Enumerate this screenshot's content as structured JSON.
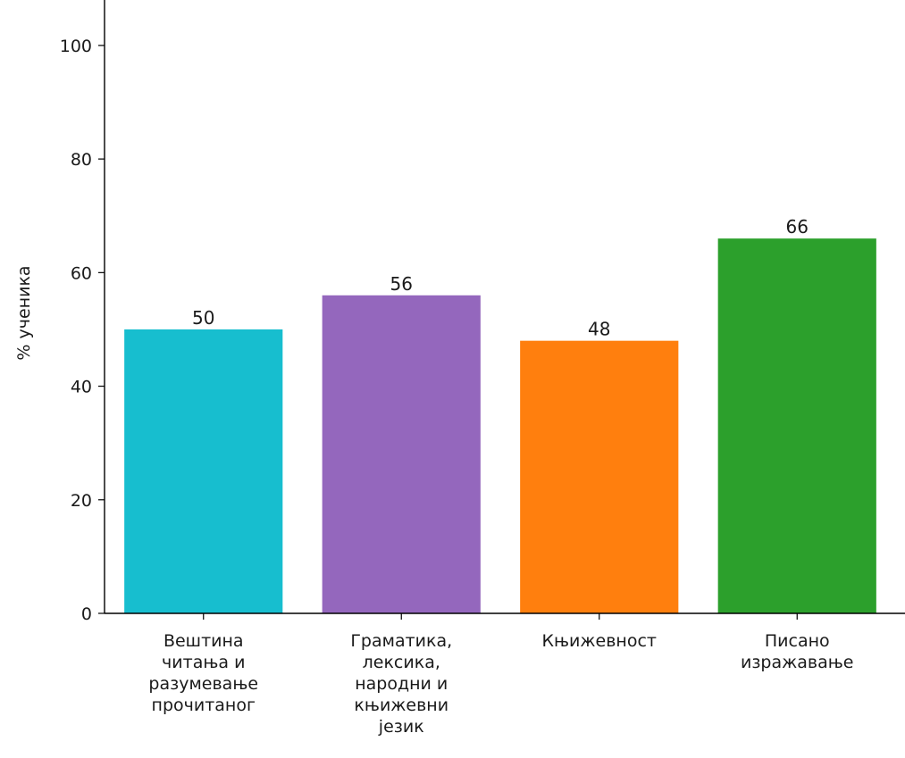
{
  "chart_data": {
    "type": "bar",
    "title": "",
    "xlabel": "",
    "ylabel": "% ученика",
    "ylim": [
      0,
      108
    ],
    "yticks": [
      0,
      20,
      40,
      60,
      80,
      100
    ],
    "grid": false,
    "categories": [
      "Вештина читања и разумевање прочитаног",
      "Граматика, лексика, народни и књижевни језик",
      "Књижевност",
      "Писано изражавање"
    ],
    "category_lines": [
      [
        "Вештина",
        "читања и",
        "разумевање",
        "прочитаног"
      ],
      [
        "Граматика,",
        "лексика,",
        "народни и",
        "књижевни",
        "језик"
      ],
      [
        "Књижевност"
      ],
      [
        "Писано",
        "изражавање"
      ]
    ],
    "values": [
      50,
      56,
      48,
      66
    ],
    "colors": [
      "#17becf",
      "#9467bd",
      "#ff7f0e",
      "#2ca02c"
    ]
  }
}
